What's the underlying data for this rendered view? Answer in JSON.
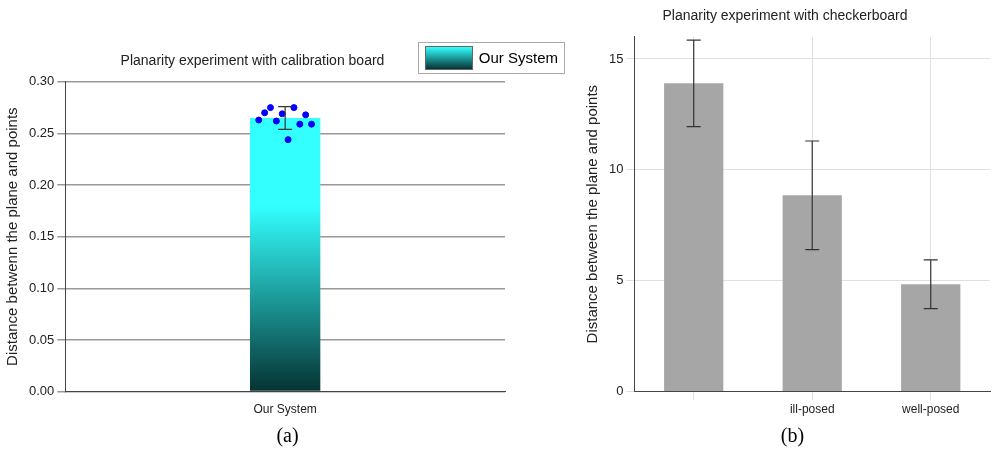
{
  "chart_data": [
    {
      "type": "bar",
      "title": "Planarity experiment with calibration board",
      "ylabel": "Distance betwenn the plane and points",
      "categories": [
        "Our System"
      ],
      "series": [
        {
          "name": "Our System",
          "color": "#33ffff",
          "values": [
            0.265
          ],
          "errors": [
            0.011
          ]
        },
        {
          "type": "scatter",
          "color": "#0000ff",
          "x": [
            "Our System",
            "Our System",
            "Our System",
            "Our System",
            "Our System",
            "Our System",
            "Our System",
            "Our System",
            "Our System",
            "Our System"
          ],
          "values": [
            0.263,
            0.27,
            0.275,
            0.262,
            0.269,
            0.244,
            0.275,
            0.259,
            0.268,
            0.259
          ]
        }
      ],
      "ylim": [
        0,
        0.3
      ],
      "yticks": [
        {
          "value": 0,
          "label": "0.00"
        },
        {
          "value": 0.05,
          "label": "0.05"
        },
        {
          "value": 0.1,
          "label": "0.10"
        },
        {
          "value": 0.15,
          "label": "0.15"
        },
        {
          "value": 0.2,
          "label": "0.20"
        },
        {
          "value": 0.25,
          "label": "0.25"
        },
        {
          "value": 0.3,
          "label": "0.30"
        }
      ],
      "grid": "y",
      "legend": "top right",
      "annotations": [
        "(a)"
      ]
    },
    {
      "type": "bar",
      "title": "Planarity experiment with checkerboard",
      "ylabel": "Distance between the plane and points",
      "categories": [
        null,
        "ill-posed",
        "well-posed"
      ],
      "values": [
        13.9,
        8.85,
        4.84
      ],
      "errors": [
        1.95,
        2.45,
        1.1
      ],
      "color": "#a6a6a6",
      "ylim": [
        0,
        16
      ],
      "yticks": [
        0,
        5,
        10,
        15
      ],
      "grid": true,
      "annotations": [
        "(b)"
      ]
    }
  ]
}
